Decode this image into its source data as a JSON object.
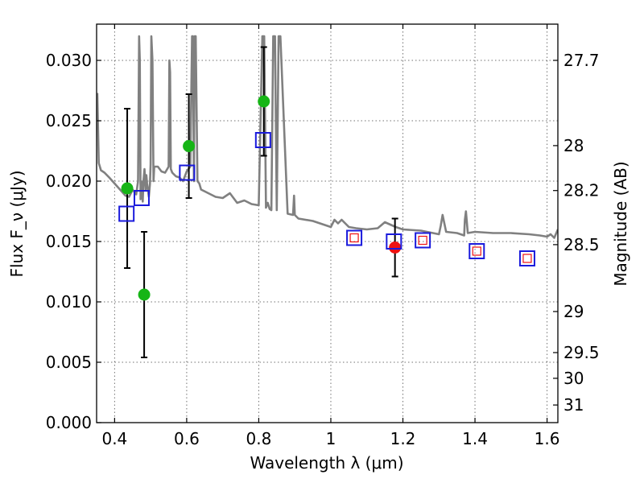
{
  "chart_data": {
    "type": "scatter",
    "xlabel": "Wavelength λ (μm)",
    "ylabel": "Flux F_ν (μJy)",
    "y2label": "Magnitude (AB)",
    "xlim": [
      0.35,
      1.63
    ],
    "ylim": [
      0.0,
      0.033
    ],
    "grid": true,
    "x_ticks": [
      0.4,
      0.6,
      0.8,
      1.0,
      1.2,
      1.4,
      1.6
    ],
    "x_tick_labels": [
      "0.4",
      "0.6",
      "0.8",
      "1",
      "1.2",
      "1.4",
      "1.6"
    ],
    "y_ticks": [
      0.0,
      0.005,
      0.01,
      0.015,
      0.02,
      0.025,
      0.03
    ],
    "y_tick_labels": [
      "0.000",
      "0.005",
      "0.010",
      "0.015",
      "0.020",
      "0.025",
      "0.030"
    ],
    "y2_ticks": [
      {
        "label": "27.7",
        "flux": 0.03
      },
      {
        "label": "28",
        "flux": 0.02294
      },
      {
        "label": "28.2",
        "flux": 0.01922
      },
      {
        "label": "28.5",
        "flux": 0.01474
      },
      {
        "label": "29",
        "flux": 0.0092
      },
      {
        "label": "29.5",
        "flux": 0.0058
      },
      {
        "label": "30",
        "flux": 0.00367
      },
      {
        "label": "31",
        "flux": 0.00146
      }
    ],
    "series": [
      {
        "name": "SED model",
        "kind": "line",
        "color": "#808080",
        "x": [
          0.352,
          0.356,
          0.362,
          0.372,
          0.385,
          0.4,
          0.415,
          0.43,
          0.44,
          0.45,
          0.46,
          0.465,
          0.468,
          0.47,
          0.472,
          0.474,
          0.476,
          0.478,
          0.48,
          0.483,
          0.486,
          0.488,
          0.49,
          0.495,
          0.498,
          0.5,
          0.502,
          0.505,
          0.508,
          0.51,
          0.52,
          0.53,
          0.54,
          0.55,
          0.552,
          0.554,
          0.556,
          0.56,
          0.57,
          0.58,
          0.59,
          0.6,
          0.61,
          0.615,
          0.617,
          0.62,
          0.622,
          0.625,
          0.63,
          0.635,
          0.64,
          0.66,
          0.68,
          0.7,
          0.72,
          0.74,
          0.76,
          0.78,
          0.8,
          0.81,
          0.815,
          0.82,
          0.825,
          0.83,
          0.835,
          0.84,
          0.845,
          0.85,
          0.855,
          0.86,
          0.88,
          0.895,
          0.898,
          0.9,
          0.91,
          0.95,
          1.0,
          1.01,
          1.02,
          1.03,
          1.05,
          1.07,
          1.1,
          1.13,
          1.15,
          1.18,
          1.2,
          1.25,
          1.3,
          1.305,
          1.31,
          1.32,
          1.35,
          1.37,
          1.372,
          1.375,
          1.38,
          1.4,
          1.45,
          1.5,
          1.55,
          1.58,
          1.6,
          1.61,
          1.62,
          1.63
        ],
        "y": [
          0.0273,
          0.0215,
          0.0209,
          0.0207,
          0.0203,
          0.0198,
          0.0193,
          0.0188,
          0.0187,
          0.0193,
          0.0189,
          0.02,
          0.032,
          0.03,
          0.0185,
          0.02,
          0.0196,
          0.0183,
          0.02,
          0.021,
          0.0193,
          0.0205,
          0.0198,
          0.0187,
          0.0198,
          0.0214,
          0.032,
          0.03,
          0.02,
          0.0212,
          0.0212,
          0.0208,
          0.0207,
          0.0212,
          0.03,
          0.029,
          0.021,
          0.0207,
          0.0204,
          0.0203,
          0.02,
          0.0208,
          0.0212,
          0.032,
          0.032,
          0.02,
          0.032,
          0.032,
          0.02,
          0.0198,
          0.0193,
          0.019,
          0.0187,
          0.0186,
          0.019,
          0.0182,
          0.0184,
          0.0181,
          0.018,
          0.032,
          0.032,
          0.0178,
          0.0182,
          0.0177,
          0.0176,
          0.032,
          0.032,
          0.0176,
          0.032,
          0.032,
          0.0173,
          0.0172,
          0.0188,
          0.0172,
          0.0169,
          0.0167,
          0.0162,
          0.0168,
          0.0165,
          0.0168,
          0.0162,
          0.0161,
          0.016,
          0.0161,
          0.0166,
          0.0162,
          0.016,
          0.0159,
          0.0156,
          0.0163,
          0.0172,
          0.0158,
          0.0157,
          0.0155,
          0.0168,
          0.0175,
          0.0157,
          0.0158,
          0.0157,
          0.0157,
          0.0156,
          0.0155,
          0.0154,
          0.0156,
          0.0153,
          0.016
        ]
      },
      {
        "name": "observed (green)",
        "kind": "errorbar",
        "color": "#16b516",
        "x": [
          0.435,
          0.482,
          0.606,
          0.814
        ],
        "y": [
          0.0194,
          0.0106,
          0.0229,
          0.0266
        ],
        "yerr": [
          0.0066,
          0.0052,
          0.0043,
          0.0045
        ]
      },
      {
        "name": "observed (red)",
        "kind": "errorbar",
        "color": "#ee1111",
        "x": [
          1.178
        ],
        "y": [
          0.0145
        ],
        "yerr": [
          0.0024
        ]
      },
      {
        "name": "model photometry (blue)",
        "kind": "open-square",
        "color": "#1a1adc",
        "x": [
          0.433,
          0.475,
          0.601,
          0.812,
          1.065,
          1.175,
          1.255,
          1.405,
          1.545
        ],
        "y": [
          0.0173,
          0.0186,
          0.0207,
          0.0234,
          0.0153,
          0.015,
          0.0151,
          0.0142,
          0.0136
        ]
      },
      {
        "name": "model photometry (red inner)",
        "kind": "small-open-square",
        "color": "#ee1111",
        "x": [
          1.065,
          1.255,
          1.405,
          1.545
        ],
        "y": [
          0.0153,
          0.0151,
          0.0142,
          0.0136
        ]
      }
    ]
  }
}
